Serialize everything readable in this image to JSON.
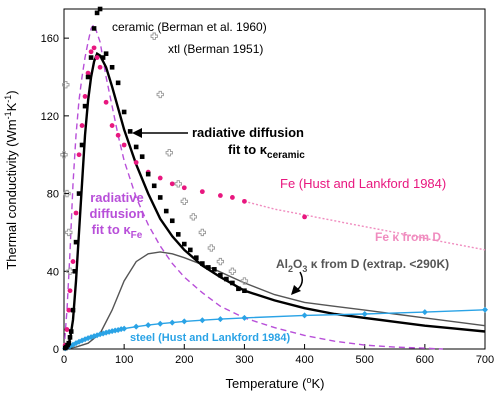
{
  "chart_data": {
    "type": "scatter",
    "xlabel": "Temperature (",
    "xlabel_sup": "o",
    "xlabel_end": "K)",
    "ylabel": "Thermal conductivity (Wm",
    "ylabel_sup1": "-1",
    "ylabel_mid": "K",
    "ylabel_sup2": "-1",
    "ylabel_end": ")",
    "xlim": [
      0,
      700
    ],
    "ylim": [
      0,
      175
    ],
    "x_ticks": [
      0,
      100,
      200,
      300,
      400,
      500,
      600,
      700
    ],
    "y_ticks": [
      0,
      40,
      80,
      120,
      160
    ],
    "grid": false,
    "legend": "none",
    "colors": {
      "ceramic": "#000000",
      "xtl": "#999999",
      "fe": "#e8177f",
      "fe_extrap": "#f08cbf",
      "fe_fit": "#b84fd9",
      "ceramic_fit": "#000000",
      "al2o3": "#555555",
      "steel": "#2aa3e6"
    },
    "series": [
      {
        "name": "ceramic (Berman et al. 1960)",
        "kind": "points",
        "marker": "square",
        "color": "#000000",
        "x": [
          2,
          4,
          6,
          8,
          10,
          12,
          15,
          18,
          20,
          25,
          30,
          35,
          40,
          45,
          50,
          55,
          60,
          65,
          70,
          80,
          90,
          100,
          110,
          120,
          130,
          140,
          150,
          160,
          170,
          180,
          190,
          200,
          210,
          220,
          230,
          240,
          250,
          260,
          270,
          280,
          290,
          300
        ],
        "y": [
          0.5,
          1,
          2,
          3,
          6,
          9,
          20,
          40,
          55,
          80,
          105,
          125,
          140,
          150,
          165,
          173,
          175,
          150,
          152,
          145,
          137,
          122,
          112,
          104,
          99,
          90,
          84,
          78,
          71,
          66,
          59,
          54,
          51,
          47,
          44,
          42,
          41,
          38,
          36,
          34,
          31,
          30
        ]
      },
      {
        "name": "xtl (Berman 1951)",
        "kind": "points",
        "marker": "cross",
        "color": "#999999",
        "x": [
          0,
          3,
          5,
          8,
          10,
          150,
          160,
          175,
          190,
          200,
          215,
          230,
          245,
          260,
          280,
          300
        ],
        "y": [
          100,
          136,
          80,
          60,
          40,
          161,
          131,
          101,
          85,
          76,
          68,
          60,
          52,
          45,
          40,
          35
        ]
      },
      {
        "name": "Fe (Hust and Lankford 1984)",
        "kind": "points",
        "marker": "circle",
        "color": "#e8177f",
        "x": [
          2,
          5,
          8,
          10,
          15,
          20,
          25,
          30,
          35,
          40,
          45,
          50,
          55,
          60,
          70,
          80,
          90,
          100,
          120,
          140,
          160,
          180,
          200,
          230,
          260,
          280,
          300,
          400
        ],
        "y": [
          2,
          10,
          20,
          30,
          45,
          70,
          100,
          115,
          130,
          142,
          153,
          155,
          150,
          145,
          127,
          115,
          110,
          105,
          96,
          91,
          88,
          85,
          83,
          81,
          79,
          78,
          76,
          68
        ]
      },
      {
        "name": "Fe κ from D",
        "kind": "line",
        "dash": "2,2",
        "color": "#f08cbf",
        "x": [
          300,
          350,
          400,
          450,
          500,
          550,
          600,
          650,
          700
        ],
        "y": [
          76,
          72,
          69,
          66,
          63,
          60,
          57,
          54,
          51
        ]
      },
      {
        "name": "radiative diffusion fit to κFe",
        "kind": "line",
        "dash": "6,4",
        "color": "#b84fd9",
        "x": [
          0,
          5,
          10,
          15,
          20,
          25,
          30,
          35,
          40,
          45,
          50,
          60,
          70,
          80,
          90,
          100,
          120,
          140,
          160,
          180,
          200,
          230,
          260,
          300,
          350,
          400,
          450,
          500,
          550,
          600,
          630
        ],
        "y": [
          0,
          20,
          50,
          85,
          110,
          128,
          140,
          150,
          158,
          165,
          167,
          158,
          140,
          125,
          110,
          97,
          78,
          64,
          53,
          44,
          37,
          29,
          22,
          16,
          11,
          7,
          4,
          2,
          1,
          0.4,
          0
        ]
      },
      {
        "name": "radiative diffusion fit to κceramic",
        "kind": "line",
        "color": "#000000",
        "width": 2.4,
        "x": [
          0,
          5,
          10,
          15,
          20,
          25,
          30,
          35,
          40,
          45,
          50,
          55,
          60,
          70,
          80,
          90,
          100,
          120,
          140,
          160,
          180,
          200,
          230,
          260,
          300,
          350,
          400,
          450,
          500,
          550,
          600,
          650,
          700
        ],
        "y": [
          0,
          1,
          5,
          15,
          35,
          60,
          85,
          110,
          128,
          140,
          148,
          152,
          151,
          145,
          135,
          124,
          113,
          95,
          80,
          67,
          58,
          51,
          43,
          37,
          30,
          25,
          21,
          18,
          16,
          14,
          12,
          10.5,
          9
        ]
      },
      {
        "name": "Al2O3 κ from D (extrap. <290K)",
        "kind": "line",
        "color": "#555555",
        "x": [
          0,
          20,
          40,
          60,
          80,
          100,
          120,
          140,
          160,
          180,
          200,
          250,
          300,
          350,
          400,
          450,
          500,
          550,
          600,
          650,
          700
        ],
        "y": [
          0,
          1,
          3,
          8,
          20,
          35,
          45,
          49,
          50,
          49,
          47,
          41,
          34,
          28,
          24,
          22,
          20,
          18,
          16,
          14,
          12
        ]
      },
      {
        "name": "steel (Hust and Lankford 1984)",
        "kind": "line-points",
        "marker": "diamond",
        "color": "#2aa3e6",
        "x": [
          2,
          5,
          10,
          15,
          20,
          25,
          30,
          35,
          40,
          45,
          50,
          55,
          60,
          65,
          70,
          75,
          80,
          85,
          90,
          95,
          100,
          120,
          140,
          160,
          180,
          200,
          230,
          260,
          300,
          400,
          500,
          600,
          700
        ],
        "y": [
          0.3,
          0.7,
          1.5,
          2.2,
          3,
          3.7,
          4.4,
          5,
          5.6,
          6.1,
          6.6,
          7.1,
          7.6,
          8,
          8.4,
          8.8,
          9.2,
          9.5,
          9.8,
          10.2,
          10.5,
          11.5,
          12.3,
          13,
          13.6,
          14.2,
          14.8,
          15.4,
          16,
          17.3,
          18,
          19,
          20.2
        ]
      }
    ],
    "annotations": {
      "ceramic": "ceramic (Berman et al. 1960)",
      "xtl": "xtl (Berman 1951)",
      "fe_data": "Fe (Hust and Lankford 1984)",
      "fe_extrap": "Fe κ from D",
      "rad_ceramic_1": "radiative diffusion",
      "rad_ceramic_2": "fit to κ",
      "rad_ceramic_sub": "ceramic",
      "rad_fe_1": "radiative",
      "rad_fe_2": "diffusion",
      "rad_fe_3": "fit to κ",
      "rad_fe_sub": "Fe",
      "al2o3_a": "Al",
      "al2o3_s1": "2",
      "al2o3_b": "O",
      "al2o3_s2": "3",
      "al2o3_c": " κ from D (extrap. <290K)",
      "steel": "steel (Hust and Lankford 1984)"
    }
  }
}
